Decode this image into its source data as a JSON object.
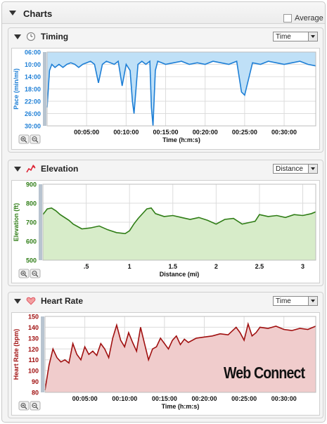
{
  "header": {
    "title": "Charts",
    "average_label": "Average"
  },
  "watermark": "Web Connect",
  "colors": {
    "timing_line": "#1e7fd6",
    "timing_fill": "#bfe0f7",
    "elevation_line": "#2f7d16",
    "elevation_fill": "#d7ecc9",
    "hr_line": "#a01010",
    "hr_fill": "#f0cccc"
  },
  "timing": {
    "title": "Timing",
    "icon": "clock-icon",
    "dropdown": "Time",
    "chart_data": {
      "type": "area",
      "ylabel": "Pace (min/mi)",
      "xlabel": "Time (h:m:s)",
      "y_ticks": [
        "06:00",
        "10:00",
        "14:00",
        "18:00",
        "22:00",
        "26:00",
        "30:00"
      ],
      "x_ticks": [
        "00:05:00",
        "00:10:00",
        "00:15:00",
        "00:20:00",
        "00:25:00",
        "00:30:00"
      ],
      "ylim": [
        6,
        30
      ],
      "xlim_min": [
        0,
        34
      ],
      "y_inverted": true,
      "x": [
        0,
        0.3,
        0.6,
        1,
        1.5,
        2,
        2.5,
        3,
        3.5,
        4,
        4.5,
        5,
        5.5,
        6,
        6.5,
        7,
        7.5,
        8,
        8.5,
        9,
        9.5,
        10,
        10.5,
        10.8,
        11,
        11.5,
        12,
        12.5,
        13,
        13.2,
        13.4,
        13.7,
        14,
        14.5,
        15,
        16,
        17,
        18,
        19,
        20,
        21,
        22,
        23,
        24,
        24.3,
        24.6,
        25,
        26,
        27,
        28,
        29,
        30,
        31,
        32,
        33,
        34
      ],
      "y": [
        24,
        12,
        10,
        11,
        10,
        11,
        10,
        9.5,
        10,
        11,
        10,
        9.5,
        9,
        10,
        16,
        10,
        9,
        9.5,
        10,
        9,
        17,
        10,
        12,
        22,
        26,
        10,
        9,
        10,
        9,
        24,
        30,
        12,
        9,
        9.5,
        10,
        9.5,
        9,
        10,
        9.5,
        10,
        9,
        9.5,
        10,
        9,
        14,
        19,
        20,
        9.5,
        10,
        9,
        9.5,
        10,
        9.5,
        9,
        10,
        10.5
      ]
    }
  },
  "elevation": {
    "title": "Elevation",
    "icon": "elevation-icon",
    "dropdown": "Distance",
    "chart_data": {
      "type": "area",
      "ylabel": "Elevation (ft)",
      "xlabel": "Distance (mi)",
      "y_ticks": [
        "900",
        "800",
        "700",
        "600",
        "500"
      ],
      "x_ticks": [
        ".5",
        "1",
        "1.5",
        "2",
        "2.5",
        "3"
      ],
      "ylim": [
        500,
        900
      ],
      "xlim": [
        0,
        3.15
      ],
      "x": [
        0,
        0.05,
        0.1,
        0.15,
        0.2,
        0.3,
        0.35,
        0.45,
        0.55,
        0.65,
        0.75,
        0.85,
        0.95,
        1.0,
        1.05,
        1.1,
        1.2,
        1.25,
        1.3,
        1.4,
        1.5,
        1.6,
        1.7,
        1.8,
        1.9,
        2.0,
        2.1,
        2.2,
        2.3,
        2.4,
        2.45,
        2.5,
        2.6,
        2.7,
        2.8,
        2.9,
        3.0,
        3.1,
        3.15
      ],
      "y": [
        740,
        770,
        775,
        760,
        740,
        710,
        690,
        665,
        670,
        680,
        660,
        645,
        640,
        655,
        690,
        720,
        770,
        775,
        745,
        730,
        735,
        725,
        715,
        725,
        710,
        690,
        715,
        720,
        690,
        700,
        705,
        740,
        730,
        735,
        725,
        740,
        735,
        745,
        755
      ]
    }
  },
  "heart_rate": {
    "title": "Heart Rate",
    "icon": "heart-icon",
    "dropdown": "Time",
    "chart_data": {
      "type": "area",
      "ylabel": "Heart Rate (bpm)",
      "xlabel": "Time (h:m:s)",
      "y_ticks": [
        "150",
        "140",
        "130",
        "120",
        "110",
        "100",
        "90",
        "80"
      ],
      "x_ticks": [
        "00:05:00",
        "00:10:00",
        "00:15:00",
        "00:20:00",
        "00:25:00",
        "00:30:00"
      ],
      "ylim": [
        80,
        150
      ],
      "xlim_min": [
        0,
        34
      ],
      "x": [
        0,
        0.5,
        1,
        1.5,
        2,
        2.5,
        3,
        3.5,
        4,
        4.5,
        5,
        5.5,
        6,
        6.5,
        7,
        7.5,
        8,
        8.5,
        9,
        9.5,
        10,
        10.5,
        11,
        11.5,
        12,
        12.5,
        13,
        13.5,
        14,
        14.5,
        15,
        15.5,
        16,
        16.5,
        17,
        17.5,
        18,
        19,
        20,
        21,
        22,
        23,
        24,
        24.5,
        25,
        25.5,
        26,
        26.5,
        27,
        28,
        29,
        30,
        31,
        32,
        33,
        34
      ],
      "y": [
        82,
        105,
        120,
        112,
        108,
        110,
        107,
        125,
        115,
        110,
        122,
        115,
        118,
        114,
        125,
        120,
        112,
        130,
        142,
        128,
        122,
        135,
        126,
        118,
        140,
        125,
        110,
        120,
        122,
        130,
        125,
        120,
        128,
        132,
        124,
        129,
        126,
        130,
        131,
        132,
        134,
        133,
        140,
        135,
        128,
        143,
        132,
        135,
        140,
        139,
        141,
        138,
        137,
        139,
        138,
        141
      ]
    }
  }
}
